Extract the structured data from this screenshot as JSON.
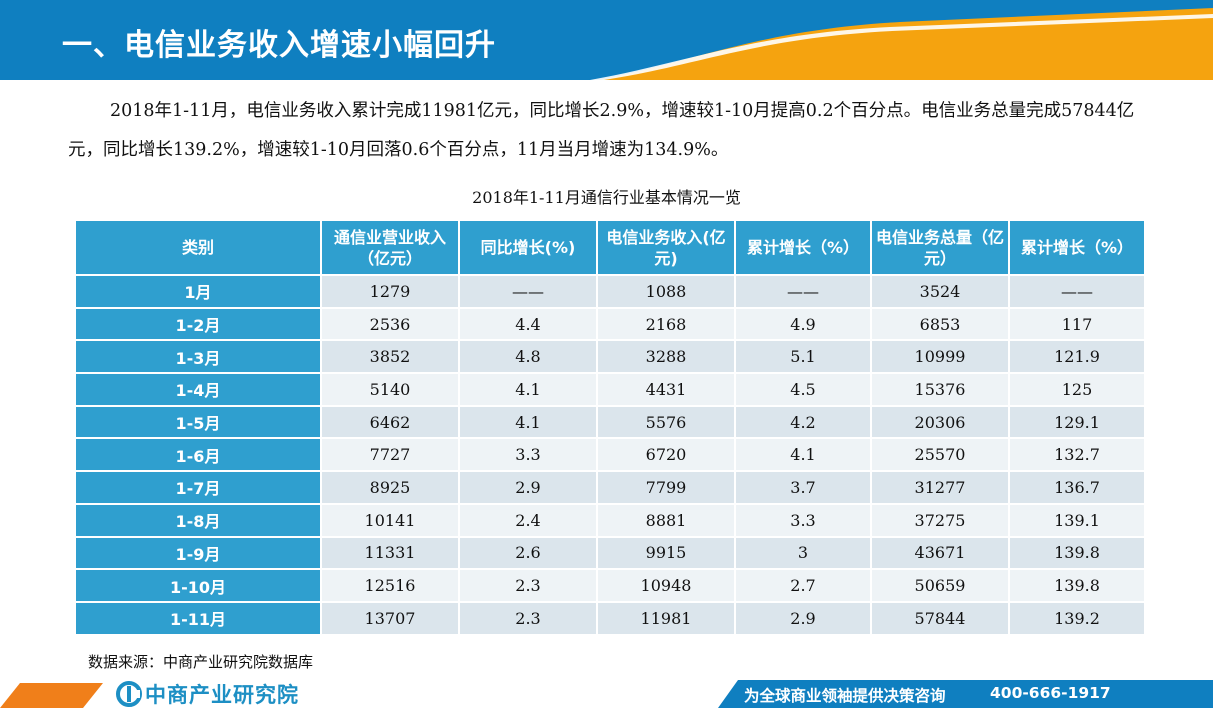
{
  "header": {
    "title": "一、电信业务收入增速小幅回升",
    "colors": {
      "primary_blue": "#0f7fc0",
      "accent_orange": "#f5a30f"
    }
  },
  "intro": {
    "text": "2018年1-11月，电信业务收入累计完成11981亿元，同比增长2.9%，增速较1-10月提高0.2个百分点。电信业务总量完成57844亿元，同比增长139.2%，增速较1-10月回落0.6个百分点，11月当月增速为134.9%。"
  },
  "table": {
    "caption": "2018年1-11月通信行业基本情况一览",
    "headers": [
      "类别",
      "通信业营业收入（亿元）",
      "同比增长(%)",
      "电信业务收入(亿元)",
      "累计增长（%）",
      "电信业务总量（亿元）",
      "累计增长（%）"
    ],
    "rows": [
      [
        "1月",
        "1279",
        "——",
        "1088",
        "——",
        "3524",
        "——"
      ],
      [
        "1-2月",
        "2536",
        "4.4",
        "2168",
        "4.9",
        "6853",
        "117"
      ],
      [
        "1-3月",
        "3852",
        "4.8",
        "3288",
        "5.1",
        "10999",
        "121.9"
      ],
      [
        "1-4月",
        "5140",
        "4.1",
        "4431",
        "4.5",
        "15376",
        "125"
      ],
      [
        "1-5月",
        "6462",
        "4.1",
        "5576",
        "4.2",
        "20306",
        "129.1"
      ],
      [
        "1-6月",
        "7727",
        "3.3",
        "6720",
        "4.1",
        "25570",
        "132.7"
      ],
      [
        "1-7月",
        "8925",
        "2.9",
        "7799",
        "3.7",
        "31277",
        "136.7"
      ],
      [
        "1-8月",
        "10141",
        "2.4",
        "8881",
        "3.3",
        "37275",
        "139.1"
      ],
      [
        "1-9月",
        "11331",
        "2.6",
        "9915",
        "3",
        "43671",
        "139.8"
      ],
      [
        "1-10月",
        "12516",
        "2.3",
        "10948",
        "2.7",
        "50659",
        "139.8"
      ],
      [
        "1-11月",
        "13707",
        "2.3",
        "11981",
        "2.9",
        "57844",
        "139.2"
      ]
    ],
    "colors": {
      "header_bg": "#2f9fcf",
      "row_odd": "#dbe5ec",
      "row_even": "#eef3f6"
    }
  },
  "source": "数据来源：中商产业研究院数据库",
  "footer": {
    "logo_text": "中商产业研究院",
    "logo_icon": "zhongshang-logo-icon",
    "slogan": "为全球商业领袖提供决策咨询",
    "phone": "400-666-1917"
  }
}
